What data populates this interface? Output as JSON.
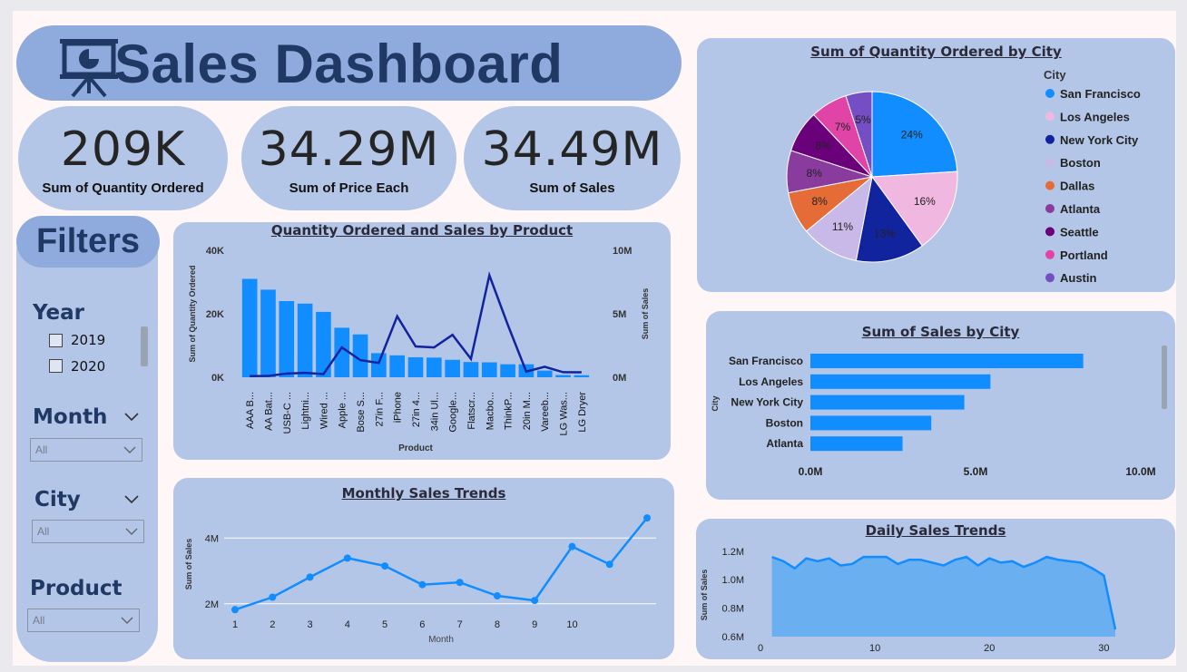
{
  "header": {
    "title": "Sales Dashboard",
    "icon": "presentation-chart-icon"
  },
  "kpis": [
    {
      "value": "209K",
      "label": "Sum of Quantity Ordered"
    },
    {
      "value": "34.29M",
      "label": "Sum of Price Each"
    },
    {
      "value": "34.49M",
      "label": "Sum of Sales"
    }
  ],
  "filters": {
    "title": "Filters",
    "year": {
      "label": "Year",
      "options": [
        "2019",
        "2020"
      ]
    },
    "month": {
      "label": "Month",
      "value": "All"
    },
    "city": {
      "label": "City",
      "value": "All"
    },
    "product": {
      "label": "Product",
      "value": "All"
    }
  },
  "chart_data": [
    {
      "id": "product",
      "type": "bar",
      "title": "Quantity Ordered and Sales by Product",
      "xlabel": "Product",
      "ylabel": "Sum of Quantity Ordered",
      "y2label": "Sum of Sales",
      "ylim": [
        0,
        40000
      ],
      "y2lim": [
        0,
        10000000
      ],
      "yticks": [
        "0K",
        "20K",
        "40K"
      ],
      "y2ticks": [
        "0M",
        "5M",
        "10M"
      ],
      "categories": [
        "AAA B...",
        "AA Bat...",
        "USB-C ...",
        "Lightni...",
        "Wired ...",
        "Apple ...",
        "Bose S...",
        "27in F...",
        "iPhone",
        "27in 4...",
        "34in Ul...",
        "Google...",
        "Flatscr...",
        "Macbo...",
        "ThinkP...",
        "20in M...",
        "Vareeb...",
        "LG Was...",
        "LG Dryer"
      ],
      "series": [
        {
          "name": "Sum of Quantity Ordered",
          "values": [
            31000,
            27600,
            24000,
            23200,
            20600,
            15600,
            13500,
            7600,
            6900,
            6300,
            6200,
            5500,
            4800,
            4700,
            4100,
            4100,
            2100,
            700,
            650
          ]
        },
        {
          "name": "Sum of Sales",
          "values": [
            90000,
            110000,
            290000,
            350000,
            250000,
            2350000,
            1350000,
            1130000,
            4800000,
            2430000,
            2350000,
            3340000,
            1450000,
            8030000,
            4130000,
            450000,
            830000,
            400000,
            390000
          ]
        }
      ]
    },
    {
      "id": "pie",
      "type": "pie",
      "title": "Sum of Quantity Ordered by City",
      "legend_title": "City",
      "legend_position": "right",
      "labels": [
        "San Francisco",
        "Los Angeles",
        "New York City",
        "Boston",
        "Dallas",
        "Atlanta",
        "Seattle",
        "Portland",
        "Austin"
      ],
      "values": [
        24,
        16,
        13,
        11,
        8,
        8,
        8,
        7,
        5
      ],
      "colors": [
        "#118dff",
        "#f0b8e0",
        "#12239e",
        "#c9b9e8",
        "#e66c37",
        "#8a3c9e",
        "#6b007b",
        "#e044a7",
        "#744ec2"
      ]
    },
    {
      "id": "city",
      "type": "bar",
      "orientation": "horizontal",
      "title": "Sum of Sales by City",
      "ylabel": "City",
      "categories": [
        "San Francisco",
        "Los Angeles",
        "New York City",
        "Boston",
        "Atlanta"
      ],
      "values": [
        8260000,
        5450000,
        4660000,
        3660000,
        2790000
      ],
      "xlim": [
        0,
        10000000
      ],
      "xticks": [
        "0.0M",
        "5.0M",
        "10.0M"
      ]
    },
    {
      "id": "monthly",
      "type": "line",
      "title": "Monthly Sales Trends",
      "xlabel": "Month",
      "ylabel": "Sum of Sales",
      "x": [
        1,
        2,
        3,
        4,
        5,
        6,
        7,
        8,
        9,
        10,
        11,
        12
      ],
      "xticks": [
        "1",
        "2",
        "3",
        "4",
        "5",
        "6",
        "7",
        "8",
        "9",
        "10"
      ],
      "values": [
        1820000,
        2200000,
        2810000,
        3390000,
        3150000,
        2580000,
        2650000,
        2240000,
        2100000,
        3740000,
        3200000,
        4610000
      ],
      "ylim": [
        1000000,
        5000000
      ],
      "yticks": [
        "2M",
        "4M"
      ]
    },
    {
      "id": "daily",
      "type": "area",
      "title": "Daily Sales Trends",
      "ylabel": "Sum of Sales",
      "x": [
        1,
        2,
        3,
        4,
        5,
        6,
        7,
        8,
        9,
        10,
        11,
        12,
        13,
        14,
        15,
        16,
        17,
        18,
        19,
        20,
        21,
        22,
        23,
        24,
        25,
        26,
        27,
        28,
        29,
        30,
        31
      ],
      "values": [
        1160000,
        1130000,
        1080000,
        1150000,
        1130000,
        1150000,
        1100000,
        1110000,
        1160000,
        1160000,
        1160000,
        1110000,
        1140000,
        1140000,
        1120000,
        1100000,
        1140000,
        1160000,
        1100000,
        1150000,
        1120000,
        1130000,
        1090000,
        1120000,
        1160000,
        1140000,
        1130000,
        1120000,
        1080000,
        1030000,
        650000
      ],
      "ylim": [
        600000,
        1250000
      ],
      "yticks": [
        "0.6M",
        "0.8M",
        "1.0M",
        "1.2M"
      ],
      "xticks": [
        "0",
        "10",
        "20",
        "30"
      ]
    }
  ]
}
